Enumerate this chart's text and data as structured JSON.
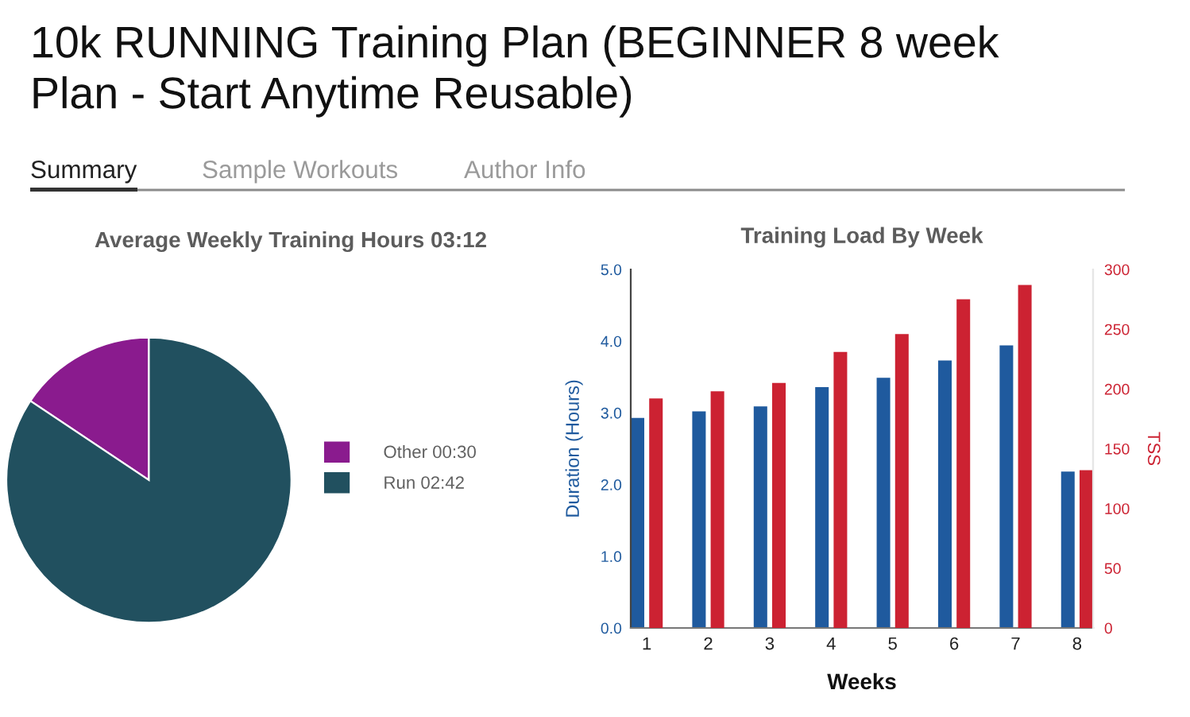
{
  "chart_data": [
    {
      "type": "other",
      "title": "10k RUNNING Training Plan (BEGINNER 8 week Plan - Start Anytime Reusable)",
      "annotations": [
        "Summary",
        "Sample Workouts",
        "Author Info"
      ]
    },
    {
      "type": "pie",
      "title": "Average Weekly Training Hours 03:12",
      "categories": [
        "Other 00:30",
        "Run 02:42"
      ],
      "values": [
        0.5,
        2.7
      ],
      "colors": [
        "#8a1b8e",
        "#21505f"
      ],
      "legend": "right"
    },
    {
      "type": "bar",
      "title": "Training Load By Week",
      "xlabel": "Weeks",
      "ylabel": "Duration (Hours)",
      "y2label": "TSS",
      "categories": [
        "1",
        "2",
        "3",
        "4",
        "5",
        "6",
        "7",
        "8"
      ],
      "series": [
        {
          "color": "#1f5a9e",
          "values": [
            2.93,
            3.02,
            3.09,
            3.36,
            3.49,
            3.73,
            3.94,
            2.18
          ]
        },
        {
          "color": "#cc2232",
          "axis": "y2",
          "values": [
            192,
            198,
            205,
            231,
            246,
            275,
            287,
            132
          ]
        }
      ],
      "ylim": [
        0,
        5
      ],
      "yticks": [
        {
          "value": 0,
          "label": "0.0"
        },
        {
          "value": 1,
          "label": "1.0"
        },
        {
          "value": 2,
          "label": "2.0"
        },
        {
          "value": 3,
          "label": "3.0"
        },
        {
          "value": 4,
          "label": "4.0"
        },
        {
          "value": 5,
          "label": "5.0"
        }
      ],
      "y2lim": [
        0,
        300
      ],
      "y2ticks": [
        0,
        50,
        100,
        150,
        200,
        250,
        300
      ]
    }
  ]
}
